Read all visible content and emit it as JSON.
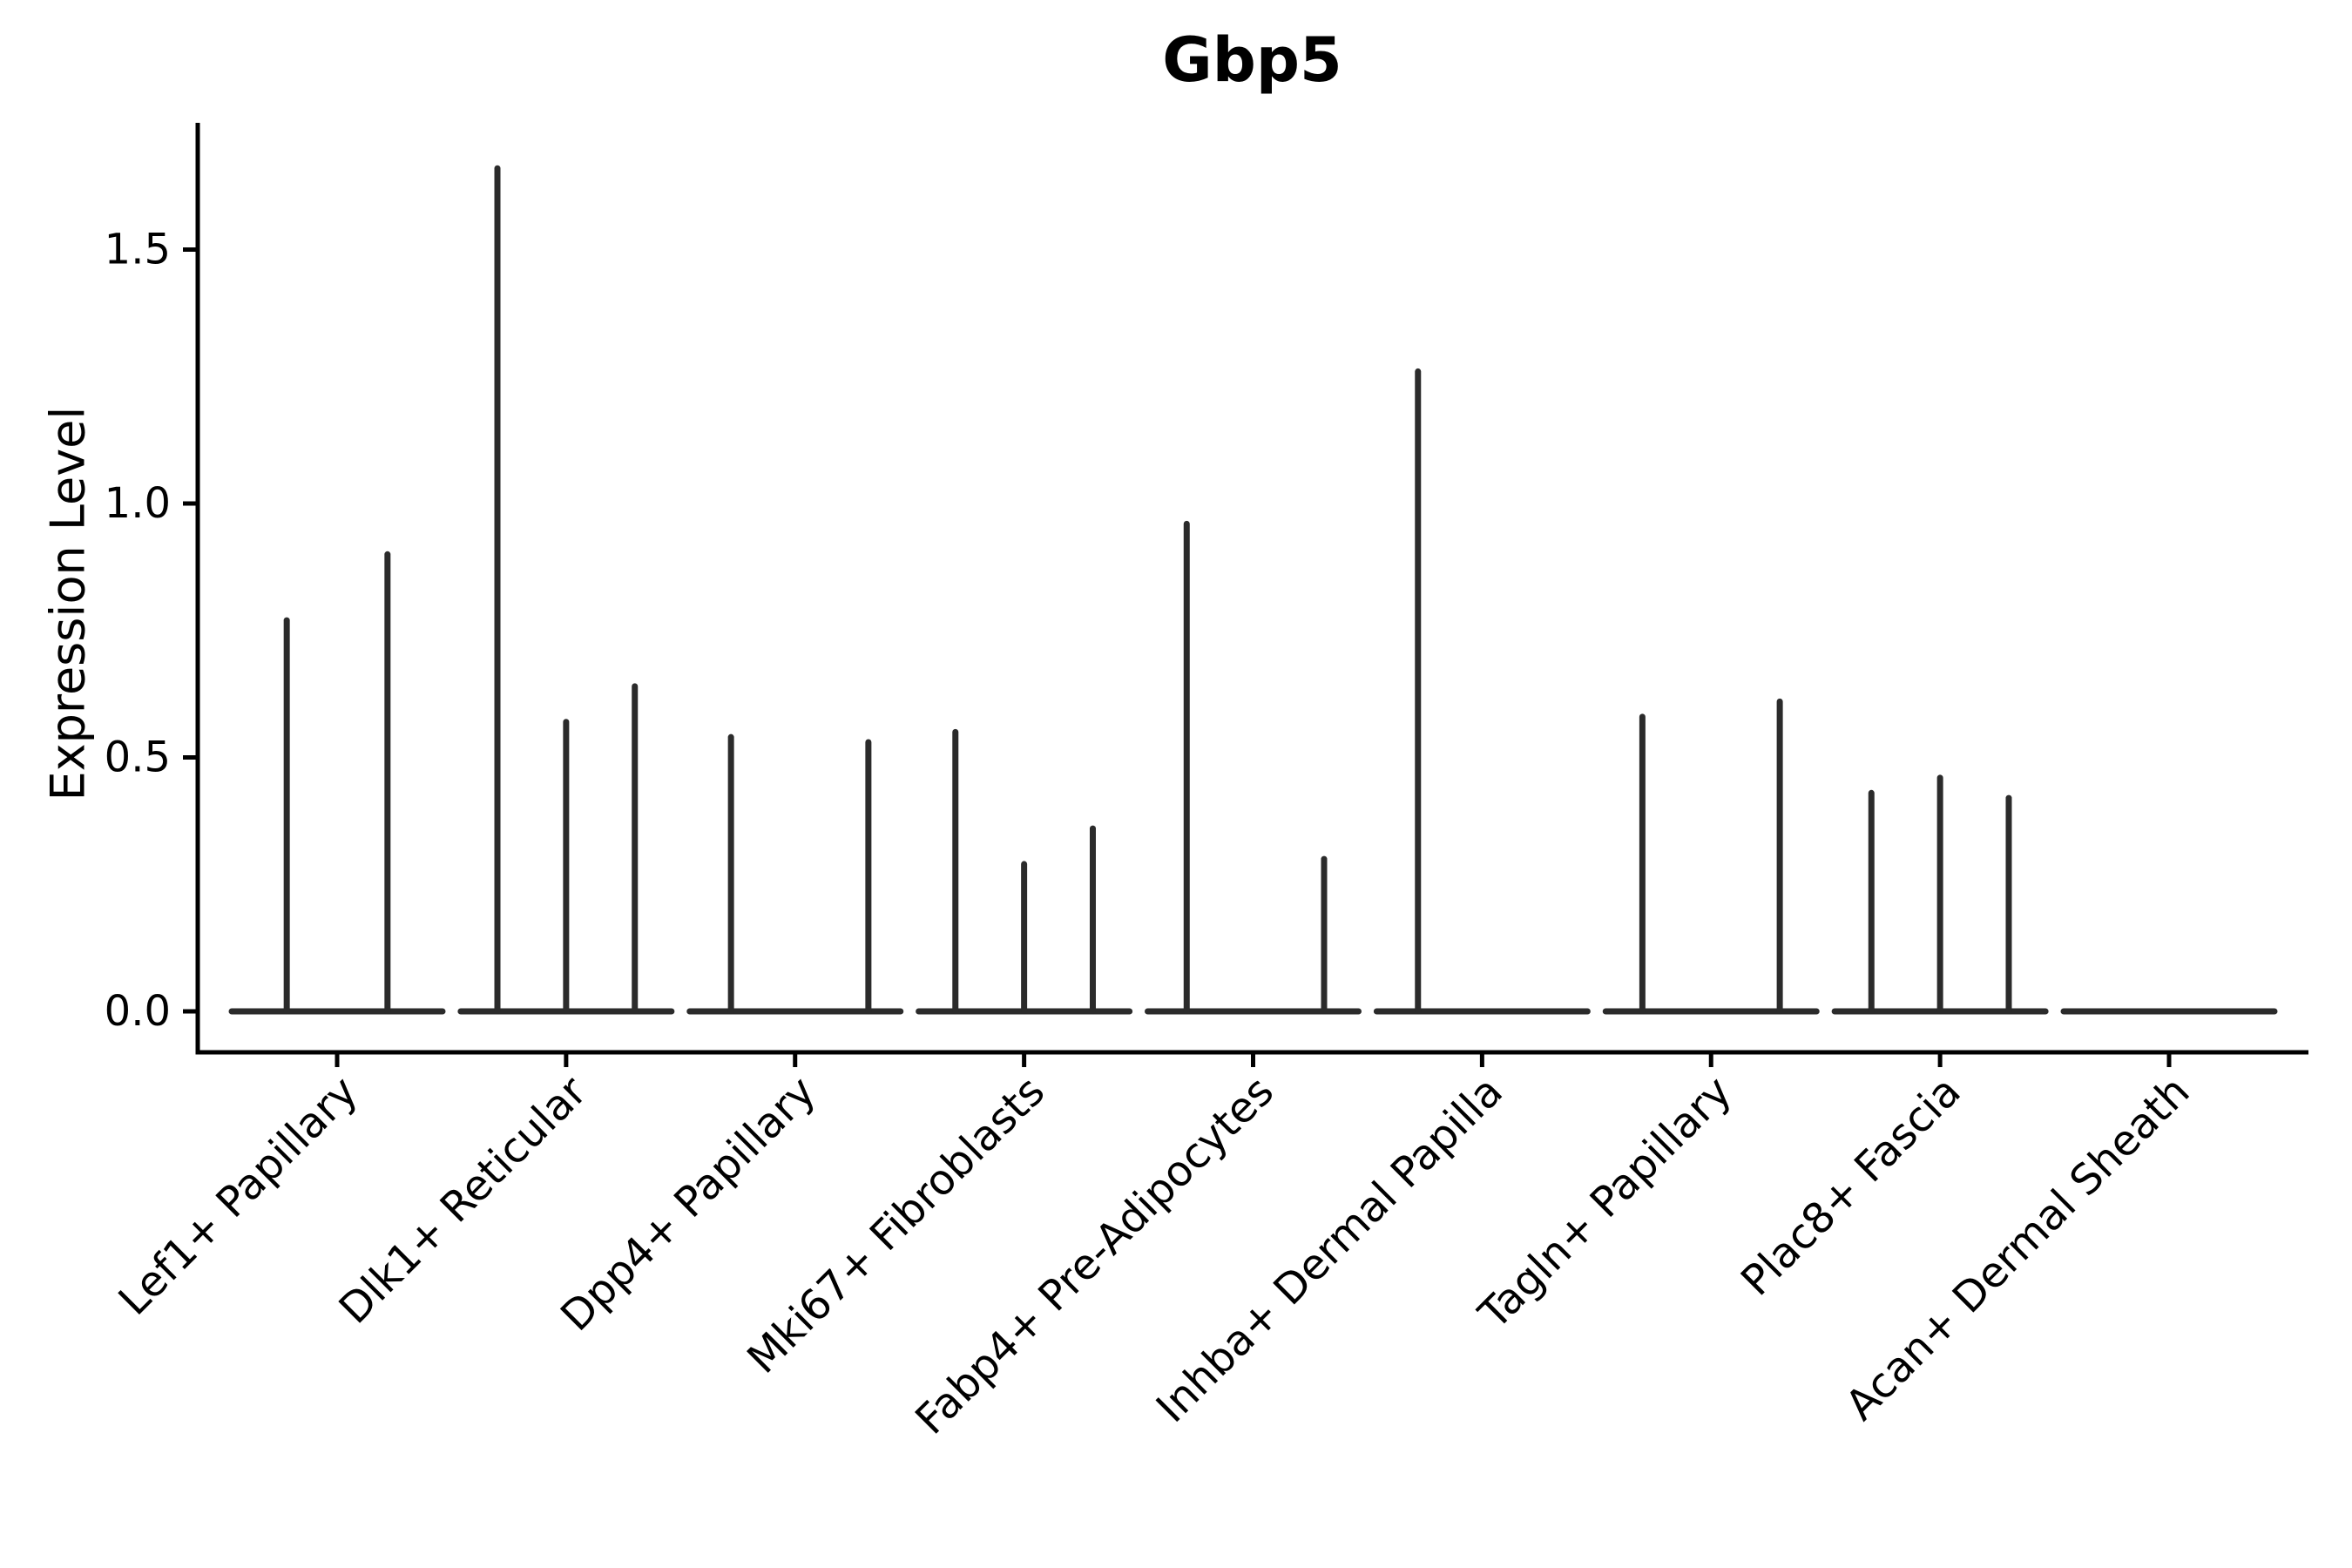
{
  "figure": {
    "title": "Gbp5",
    "y_axis_label": "Expression Level"
  },
  "chart_data": {
    "type": "violin",
    "title": "Gbp5",
    "xlabel": "",
    "ylabel": "Expression Level",
    "grid": false,
    "legend": "none",
    "background": "#ffffff",
    "violin_color": "#2b2b2b",
    "axis_color": "#000000",
    "ylim": [
      -0.08,
      1.75
    ],
    "yticks": [
      {
        "value": 0.0,
        "label": "0.0"
      },
      {
        "value": 0.5,
        "label": "0.5"
      },
      {
        "value": 1.0,
        "label": "1.0"
      },
      {
        "value": 1.5,
        "label": "1.5"
      }
    ],
    "categories": [
      "Lef1+ Papillary",
      "Dlk1+ Reticular",
      "Dpp4+ Papillary",
      "Mki67+ Fibroblasts",
      "Fabp4+ Pre-Adipocytes",
      "Inhba+ Dermal Papilla",
      "Tagln+ Papillary",
      "Plac8+ Fascia",
      "Acan+ Dermal Sheath"
    ],
    "description": "Violin plot of Gbp5 expression per fibroblast cluster: each violin is collapsed to a flat baseline at 0 with thin vertical density spikes at nonzero expression values (spike peak = expression level, dx = horizontal offset within the category as a fraction of category spacing).",
    "violins": [
      {
        "category": "Lef1+ Papillary",
        "baseline_value": 0.0,
        "spikes": [
          {
            "dx": -0.22,
            "peak": 0.77
          },
          {
            "dx": 0.22,
            "peak": 0.9
          }
        ]
      },
      {
        "category": "Dlk1+ Reticular",
        "baseline_value": 0.0,
        "spikes": [
          {
            "dx": -0.3,
            "peak": 1.66
          },
          {
            "dx": 0.0,
            "peak": 0.57
          },
          {
            "dx": 0.3,
            "peak": 0.64
          }
        ]
      },
      {
        "category": "Dpp4+ Papillary",
        "baseline_value": 0.0,
        "spikes": [
          {
            "dx": -0.28,
            "peak": 0.54
          },
          {
            "dx": 0.32,
            "peak": 0.53
          }
        ]
      },
      {
        "category": "Mki67+ Fibroblasts",
        "baseline_value": 0.0,
        "spikes": [
          {
            "dx": -0.3,
            "peak": 0.55
          },
          {
            "dx": 0.0,
            "peak": 0.29
          },
          {
            "dx": 0.3,
            "peak": 0.36
          }
        ]
      },
      {
        "category": "Fabp4+ Pre-Adipocytes",
        "baseline_value": 0.0,
        "spikes": [
          {
            "dx": -0.29,
            "peak": 0.96
          },
          {
            "dx": 0.31,
            "peak": 0.3
          }
        ]
      },
      {
        "category": "Inhba+ Dermal Papilla",
        "baseline_value": 0.0,
        "spikes": [
          {
            "dx": -0.28,
            "peak": 1.26
          }
        ]
      },
      {
        "category": "Tagln+ Papillary",
        "baseline_value": 0.0,
        "spikes": [
          {
            "dx": -0.3,
            "peak": 0.58
          },
          {
            "dx": 0.3,
            "peak": 0.61
          }
        ]
      },
      {
        "category": "Plac8+ Fascia",
        "baseline_value": 0.0,
        "spikes": [
          {
            "dx": -0.3,
            "peak": 0.43
          },
          {
            "dx": 0.0,
            "peak": 0.46
          },
          {
            "dx": 0.3,
            "peak": 0.42
          }
        ]
      },
      {
        "category": "Acan+ Dermal Sheath",
        "baseline_value": 0.0,
        "spikes": []
      }
    ]
  }
}
